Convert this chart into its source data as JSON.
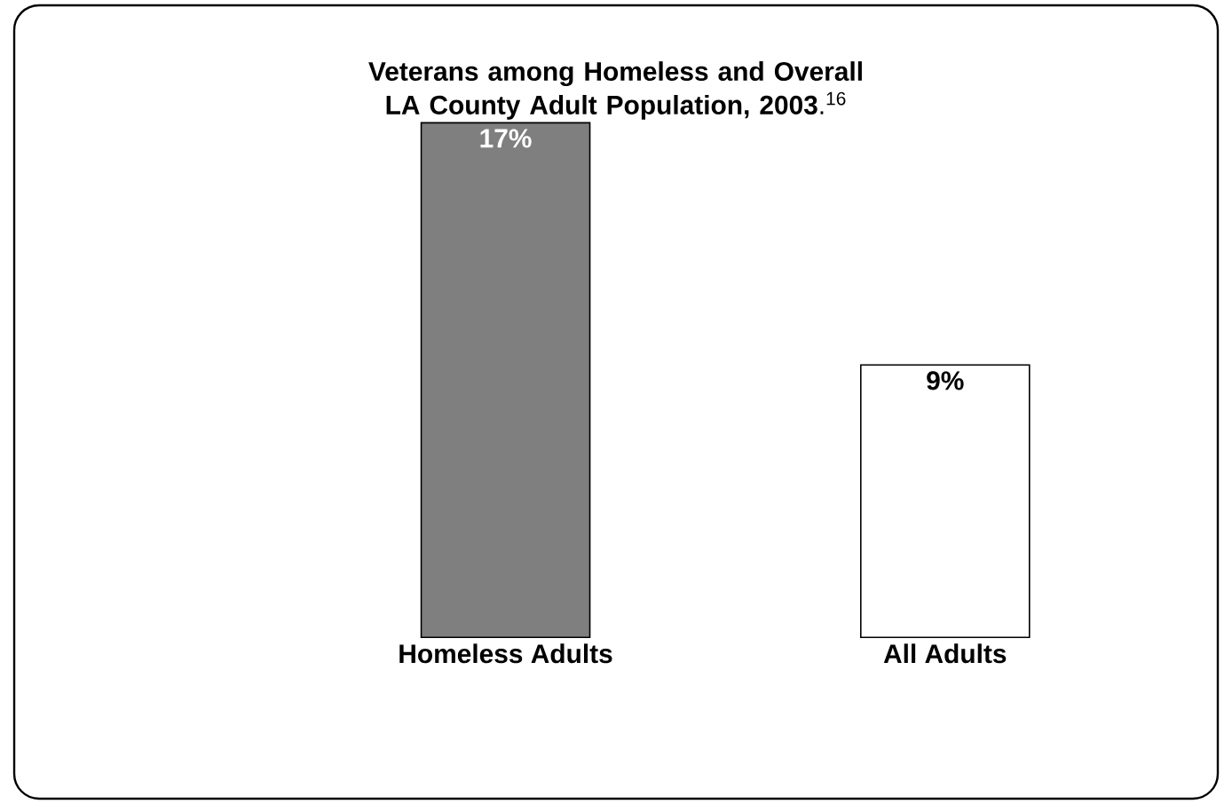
{
  "chart_data": {
    "type": "bar",
    "title": "**Veterans among Homeless and Overall LA County Adult Population, 2003**.$^{16}$",
    "categories": [
      "Homeless Adults",
      "All Adults"
    ],
    "values": [
      17,
      9
    ],
    "colors": [
      "#7f7f7f",
      "#ffffff"
    ],
    "value_labels": [
      "17%",
      "9%"
    ],
    "ylim": [
      0,
      17
    ]
  }
}
